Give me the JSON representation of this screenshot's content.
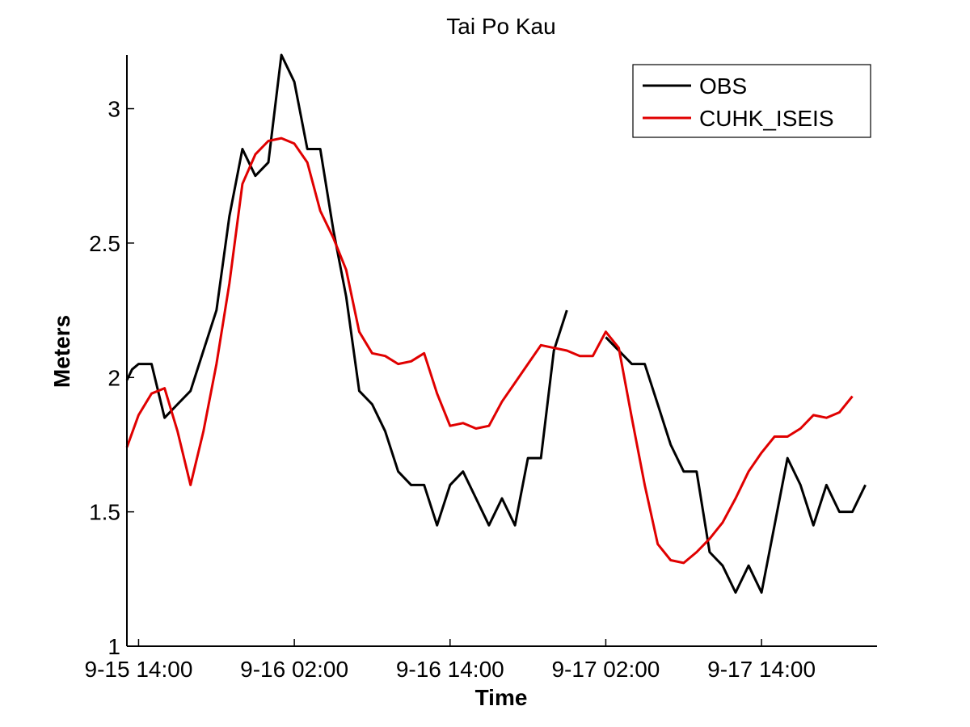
{
  "chart_data": {
    "type": "line",
    "title": "Tai Po Kau",
    "xlabel": "Time",
    "ylabel": "Meters",
    "x_unit": "hours",
    "x_ticks": [
      {
        "label": "9-15 14:00",
        "x": 14
      },
      {
        "label": "9-16 02:00",
        "x": 26
      },
      {
        "label": "9-16 14:00",
        "x": 38
      },
      {
        "label": "9-17 02:00",
        "x": 50
      },
      {
        "label": "9-17 14:00",
        "x": 62
      }
    ],
    "xlim": [
      13.1,
      70.9
    ],
    "ylim": [
      1,
      3.2
    ],
    "y_ticks": [
      1,
      1.5,
      2,
      2.5,
      3
    ],
    "grid": false,
    "legend": "top-right",
    "series": [
      {
        "name": "OBS",
        "color": "#000000",
        "points": [
          [
            13.1,
            1.99
          ],
          [
            13.5,
            2.03
          ],
          [
            14,
            2.05
          ],
          [
            15,
            2.05
          ],
          [
            16,
            1.85
          ],
          [
            17,
            1.9
          ],
          [
            18,
            1.95
          ],
          [
            19,
            2.1
          ],
          [
            20,
            2.25
          ],
          [
            21,
            2.6
          ],
          [
            22,
            2.85
          ],
          [
            23,
            2.75
          ],
          [
            24,
            2.8
          ],
          [
            25,
            3.2
          ],
          [
            26,
            3.1
          ],
          [
            27,
            2.85
          ],
          [
            28,
            2.85
          ],
          [
            29,
            2.55
          ],
          [
            30,
            2.3
          ],
          [
            31,
            1.95
          ],
          [
            32,
            1.9
          ],
          [
            33,
            1.8
          ],
          [
            34,
            1.65
          ],
          [
            35,
            1.6
          ],
          [
            36,
            1.6
          ],
          [
            37,
            1.45
          ],
          [
            38,
            1.6
          ],
          [
            39,
            1.65
          ],
          [
            40,
            1.55
          ],
          [
            41,
            1.45
          ],
          [
            42,
            1.55
          ],
          [
            43,
            1.45
          ],
          [
            44,
            1.7
          ],
          [
            45,
            1.7
          ],
          [
            46,
            2.1
          ],
          [
            47,
            2.25
          ],
          null,
          [
            50,
            2.15
          ],
          [
            51,
            2.1
          ],
          [
            52,
            2.05
          ],
          [
            53,
            2.05
          ],
          [
            54,
            1.9
          ],
          [
            55,
            1.75
          ],
          [
            56,
            1.65
          ],
          [
            57,
            1.65
          ],
          [
            58,
            1.35
          ],
          [
            59,
            1.3
          ],
          [
            60,
            1.2
          ],
          [
            61,
            1.3
          ],
          [
            62,
            1.2
          ],
          [
            63,
            1.45
          ],
          [
            64,
            1.7
          ],
          [
            65,
            1.6
          ],
          [
            66,
            1.45
          ],
          [
            67,
            1.6
          ],
          [
            68,
            1.5
          ],
          [
            69,
            1.5
          ],
          [
            70,
            1.6
          ]
        ]
      },
      {
        "name": "CUHK_ISEIS",
        "color": "#e00000",
        "points": [
          [
            13.1,
            1.74
          ],
          [
            14,
            1.86
          ],
          [
            15,
            1.94
          ],
          [
            16,
            1.96
          ],
          [
            17,
            1.8
          ],
          [
            18,
            1.6
          ],
          [
            19,
            1.8
          ],
          [
            20,
            2.05
          ],
          [
            21,
            2.35
          ],
          [
            22,
            2.72
          ],
          [
            23,
            2.83
          ],
          [
            24,
            2.88
          ],
          [
            25,
            2.89
          ],
          [
            26,
            2.87
          ],
          [
            27,
            2.8
          ],
          [
            28,
            2.62
          ],
          [
            29,
            2.52
          ],
          [
            30,
            2.4
          ],
          [
            31,
            2.17
          ],
          [
            32,
            2.09
          ],
          [
            33,
            2.08
          ],
          [
            34,
            2.05
          ],
          [
            35,
            2.06
          ],
          [
            36,
            2.09
          ],
          [
            37,
            1.94
          ],
          [
            38,
            1.82
          ],
          [
            39,
            1.83
          ],
          [
            40,
            1.81
          ],
          [
            41,
            1.82
          ],
          [
            42,
            1.91
          ],
          [
            43,
            1.98
          ],
          [
            44,
            2.05
          ],
          [
            45,
            2.12
          ],
          [
            46,
            2.11
          ],
          [
            47,
            2.1
          ],
          [
            48,
            2.08
          ],
          [
            49,
            2.08
          ],
          [
            50,
            2.17
          ],
          [
            51,
            2.11
          ],
          [
            52,
            1.85
          ],
          [
            53,
            1.6
          ],
          [
            54,
            1.38
          ],
          [
            55,
            1.32
          ],
          [
            56,
            1.31
          ],
          [
            57,
            1.35
          ],
          [
            58,
            1.4
          ],
          [
            59,
            1.46
          ],
          [
            60,
            1.55
          ],
          [
            61,
            1.65
          ],
          [
            62,
            1.72
          ],
          [
            63,
            1.78
          ],
          [
            64,
            1.78
          ],
          [
            65,
            1.81
          ],
          [
            66,
            1.86
          ],
          [
            67,
            1.85
          ],
          [
            68,
            1.87
          ],
          [
            69,
            1.93
          ]
        ]
      }
    ]
  }
}
